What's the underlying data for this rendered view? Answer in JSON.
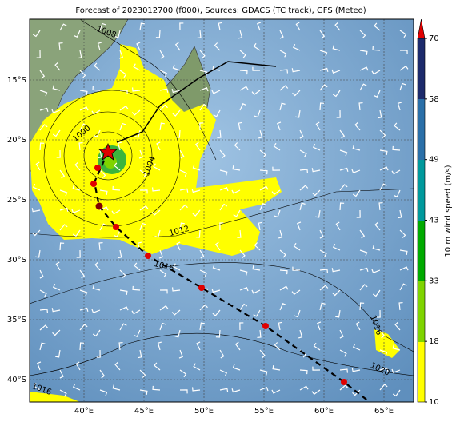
{
  "title": "Forecast of 2023012700 (f000), Sources: GDACS (TC track), GFS (Meteo)",
  "map": {
    "lat_labels": [
      "15°S",
      "20°S",
      "25°S",
      "30°S",
      "35°S",
      "40°S"
    ],
    "lon_labels": [
      "40°E",
      "45°E",
      "50°E",
      "55°E",
      "60°E",
      "65°E"
    ],
    "contour_labels": [
      "1008",
      "1000",
      "1004",
      "1012",
      "1016",
      "1016",
      "1020",
      "1016"
    ]
  },
  "colorbar": {
    "label": "10 m wind speed (m/s)",
    "ticks": [
      "10",
      "18",
      "33",
      "43",
      "49",
      "58",
      "70"
    ]
  }
}
